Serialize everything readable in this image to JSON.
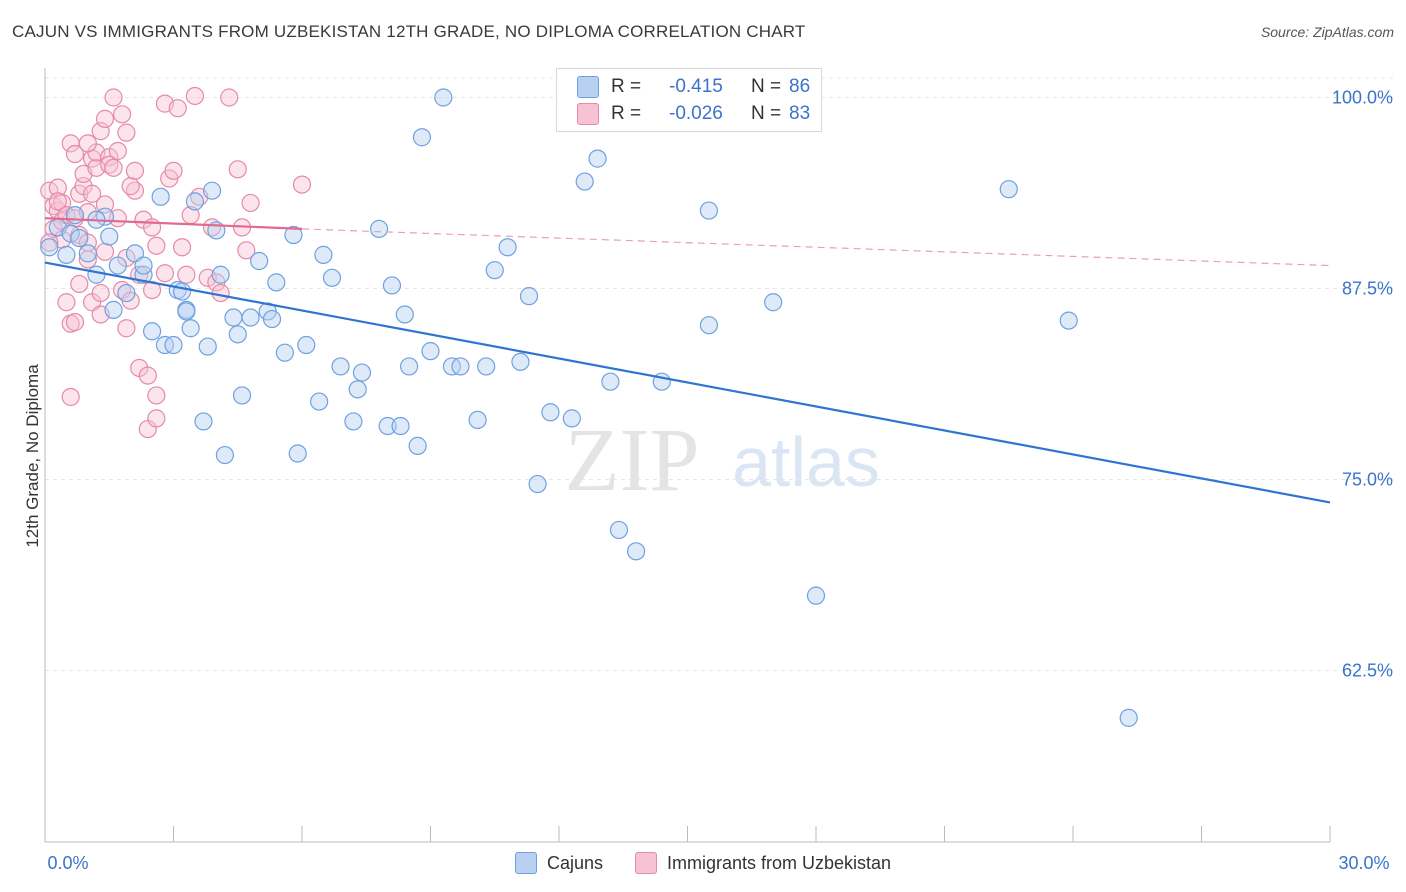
{
  "title": "CAJUN VS IMMIGRANTS FROM UZBEKISTAN 12TH GRADE, NO DIPLOMA CORRELATION CHART",
  "source": "Source: ZipAtlas.com",
  "watermark": {
    "zip": "ZIP",
    "atlas": "atlas"
  },
  "legend": {
    "rows": [
      {
        "r_label": "R =",
        "r_value": "-0.415",
        "n_label": "N =",
        "n_value": "86",
        "color": "#6fa1e0",
        "fill": "#b8d1f2"
      },
      {
        "r_label": "R =",
        "r_value": "-0.026",
        "n_label": "N =",
        "n_value": "83",
        "color": "#e58aa9",
        "fill": "#f7c3d3"
      }
    ]
  },
  "bottom_legend": {
    "cajuns": "Cajuns",
    "uzbekistan": "Immigrants from Uzbekistan"
  },
  "axis": {
    "x_min_label": "0.0%",
    "x_max_label": "30.0%",
    "y_label": "12th Grade, No Diploma",
    "y_ticks": [
      "100.0%",
      "87.5%",
      "75.0%",
      "62.5%"
    ]
  },
  "chart_data": {
    "type": "scatter",
    "xlabel": "",
    "ylabel": "12th Grade, No Diploma",
    "xlim": [
      0,
      30
    ],
    "ylim": [
      51.5,
      102
    ],
    "y_ticks": [
      100,
      87.5,
      75,
      62.5
    ],
    "grid": true,
    "legend_position": "top-center",
    "series": [
      {
        "name": "Cajuns",
        "color": "#6fa1e0",
        "r": -0.415,
        "n": 86,
        "trend": {
          "x": [
            0,
            30
          ],
          "y": [
            89.2,
            73.5
          ]
        },
        "points": [
          [
            0.1,
            90.2
          ],
          [
            0.3,
            91.5
          ],
          [
            0.5,
            89.7
          ],
          [
            0.6,
            91.1
          ],
          [
            0.7,
            92.3
          ],
          [
            0.8,
            90.8
          ],
          [
            1,
            89.8
          ],
          [
            1.2,
            88.4
          ],
          [
            1.4,
            92.2
          ],
          [
            1.5,
            90.9
          ],
          [
            1.6,
            86.1
          ],
          [
            1.7,
            89
          ],
          [
            1.9,
            87.2
          ],
          [
            2.1,
            89.8
          ],
          [
            2.3,
            88.4
          ],
          [
            2.5,
            84.7
          ],
          [
            2.7,
            93.5
          ],
          [
            2.8,
            83.8
          ],
          [
            3,
            83.8
          ],
          [
            3.1,
            87.4
          ],
          [
            3.2,
            87.3
          ],
          [
            3.3,
            86.1
          ],
          [
            3.4,
            84.9
          ],
          [
            3.5,
            93.2
          ],
          [
            3.7,
            78.8
          ],
          [
            3.8,
            83.7
          ],
          [
            3.9,
            93.9
          ],
          [
            4,
            91.3
          ],
          [
            4.1,
            88.4
          ],
          [
            4.2,
            76.6
          ],
          [
            4.4,
            85.6
          ],
          [
            4.5,
            84.5
          ],
          [
            4.6,
            80.5
          ],
          [
            4.8,
            85.6
          ],
          [
            5,
            89.3
          ],
          [
            5.2,
            86
          ],
          [
            5.3,
            85.5
          ],
          [
            5.4,
            87.9
          ],
          [
            5.6,
            83.3
          ],
          [
            5.8,
            91
          ],
          [
            5.9,
            76.7
          ],
          [
            6.1,
            83.8
          ],
          [
            6.4,
            80.1
          ],
          [
            6.5,
            89.7
          ],
          [
            6.7,
            88.2
          ],
          [
            6.9,
            82.4
          ],
          [
            7.2,
            78.8
          ],
          [
            7.3,
            80.9
          ],
          [
            7.4,
            82
          ],
          [
            7.8,
            91.4
          ],
          [
            8,
            78.5
          ],
          [
            8.1,
            87.7
          ],
          [
            8.3,
            78.5
          ],
          [
            8.4,
            85.8
          ],
          [
            8.5,
            82.4
          ],
          [
            8.7,
            77.2
          ],
          [
            8.8,
            97.4
          ],
          [
            9,
            83.4
          ],
          [
            9.3,
            100
          ],
          [
            9.5,
            82.4
          ],
          [
            9.7,
            82.4
          ],
          [
            10.1,
            78.9
          ],
          [
            10.3,
            82.4
          ],
          [
            10.5,
            88.7
          ],
          [
            10.8,
            90.2
          ],
          [
            11.1,
            82.7
          ],
          [
            11.3,
            87
          ],
          [
            11.5,
            74.7
          ],
          [
            11.8,
            79.4
          ],
          [
            12.3,
            79
          ],
          [
            12.6,
            94.5
          ],
          [
            12.9,
            96
          ],
          [
            13.2,
            81.4
          ],
          [
            13.4,
            71.7
          ],
          [
            13.8,
            70.3
          ],
          [
            14.4,
            81.4
          ],
          [
            15.5,
            92.6
          ],
          [
            15.5,
            85.1
          ],
          [
            17,
            86.6
          ],
          [
            18,
            67.4
          ],
          [
            22.5,
            94
          ],
          [
            23.9,
            85.4
          ],
          [
            25.3,
            59.4
          ],
          [
            3.3,
            86
          ],
          [
            2.3,
            89
          ],
          [
            1.2,
            92
          ]
        ]
      },
      {
        "name": "Immigrants from Uzbekistan",
        "color": "#e58aa9",
        "r": -0.026,
        "n": 83,
        "trend": {
          "x": [
            0,
            6
          ],
          "y": [
            92.1,
            91.4
          ]
        },
        "trend_dashed": {
          "x": [
            6,
            30
          ],
          "y": [
            91.4,
            89
          ]
        },
        "points": [
          [
            0.1,
            93.9
          ],
          [
            0.2,
            92.9
          ],
          [
            0.2,
            91.4
          ],
          [
            0.3,
            94.1
          ],
          [
            0.3,
            92.6
          ],
          [
            0.4,
            93.1
          ],
          [
            0.4,
            91.9
          ],
          [
            0.4,
            90.7
          ],
          [
            0.5,
            92.3
          ],
          [
            0.5,
            86.6
          ],
          [
            0.6,
            85.2
          ],
          [
            0.6,
            80.4
          ],
          [
            0.6,
            97
          ],
          [
            0.7,
            85.3
          ],
          [
            0.7,
            92.1
          ],
          [
            0.7,
            96.3
          ],
          [
            0.8,
            87.8
          ],
          [
            0.8,
            91
          ],
          [
            0.8,
            93.7
          ],
          [
            0.9,
            94.2
          ],
          [
            0.9,
            95
          ],
          [
            1,
            92.5
          ],
          [
            1,
            90.5
          ],
          [
            1,
            89.4
          ],
          [
            1.1,
            86.6
          ],
          [
            1.1,
            96
          ],
          [
            1.1,
            93.7
          ],
          [
            1.2,
            95.4
          ],
          [
            1.2,
            96.4
          ],
          [
            1.3,
            85.8
          ],
          [
            1.3,
            87.2
          ],
          [
            1.3,
            97.8
          ],
          [
            1.4,
            98.6
          ],
          [
            1.4,
            93
          ],
          [
            1.4,
            89.9
          ],
          [
            1.5,
            96.1
          ],
          [
            1.5,
            95.6
          ],
          [
            1.6,
            100
          ],
          [
            1.6,
            95.4
          ],
          [
            1.7,
            96.5
          ],
          [
            1.7,
            92.1
          ],
          [
            1.8,
            98.9
          ],
          [
            1.8,
            87.4
          ],
          [
            1.9,
            97.7
          ],
          [
            1.9,
            89.5
          ],
          [
            2,
            86.7
          ],
          [
            2.1,
            93.9
          ],
          [
            2,
            94.2
          ],
          [
            2.1,
            95.2
          ],
          [
            2.2,
            88.4
          ],
          [
            2.2,
            82.3
          ],
          [
            2.3,
            92
          ],
          [
            2.4,
            81.8
          ],
          [
            2.4,
            78.3
          ],
          [
            2.5,
            87.4
          ],
          [
            2.5,
            91.5
          ],
          [
            2.6,
            80.5
          ],
          [
            2.6,
            90.3
          ],
          [
            2.6,
            79
          ],
          [
            2.8,
            88.5
          ],
          [
            2.8,
            99.6
          ],
          [
            2.9,
            94.7
          ],
          [
            3,
            95.2
          ],
          [
            3.1,
            99.3
          ],
          [
            3.2,
            90.2
          ],
          [
            3.3,
            88.4
          ],
          [
            3.4,
            92.3
          ],
          [
            3.5,
            100.1
          ],
          [
            3.6,
            93.5
          ],
          [
            3.8,
            88.2
          ],
          [
            3.9,
            91.5
          ],
          [
            4,
            87.9
          ],
          [
            4.1,
            87.2
          ],
          [
            4.3,
            100
          ],
          [
            4.5,
            95.3
          ],
          [
            4.6,
            91.5
          ],
          [
            4.7,
            90
          ],
          [
            4.8,
            93.1
          ],
          [
            6,
            94.3
          ],
          [
            0.3,
            93.2
          ],
          [
            1,
            97
          ],
          [
            1.9,
            84.9
          ],
          [
            0.1,
            90.5
          ]
        ]
      }
    ]
  }
}
